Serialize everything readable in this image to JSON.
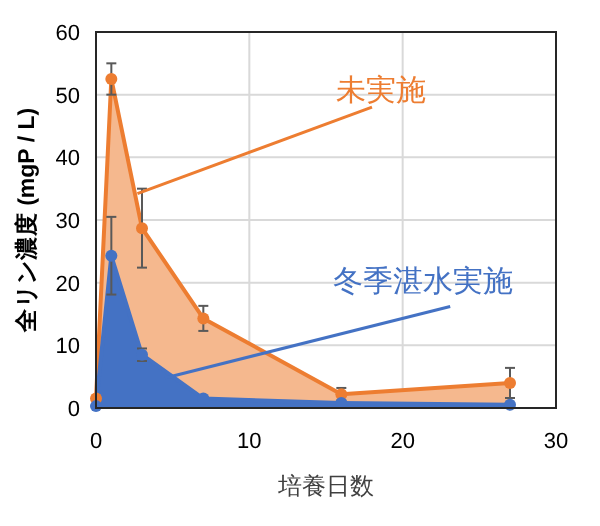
{
  "chart_data": {
    "type": "area",
    "xlabel": "培養日数",
    "ylabel": "全リン濃度 (mgP / L)",
    "x": [
      0,
      1,
      3,
      7,
      16,
      27
    ],
    "series": [
      {
        "name": "未実施",
        "color": "#ed7d31",
        "values": [
          1.5,
          52.5,
          28.7,
          14.3,
          2.2,
          4.0
        ],
        "errors": [
          null,
          2.5,
          6.3,
          2.0,
          1.0,
          2.4
        ]
      },
      {
        "name": "冬季湛水実施",
        "color": "#4472c4",
        "values": [
          0.3,
          24.3,
          8.5,
          1.5,
          0.8,
          0.5
        ],
        "errors": [
          null,
          6.2,
          1.0,
          null,
          null,
          null
        ]
      }
    ],
    "xlim": [
      0,
      30
    ],
    "xticks": [
      0,
      10,
      20,
      30
    ],
    "ylim": [
      0,
      60
    ],
    "yticks": [
      0,
      10,
      20,
      30,
      40,
      50,
      60
    ],
    "grid": true,
    "marker": "circle"
  }
}
